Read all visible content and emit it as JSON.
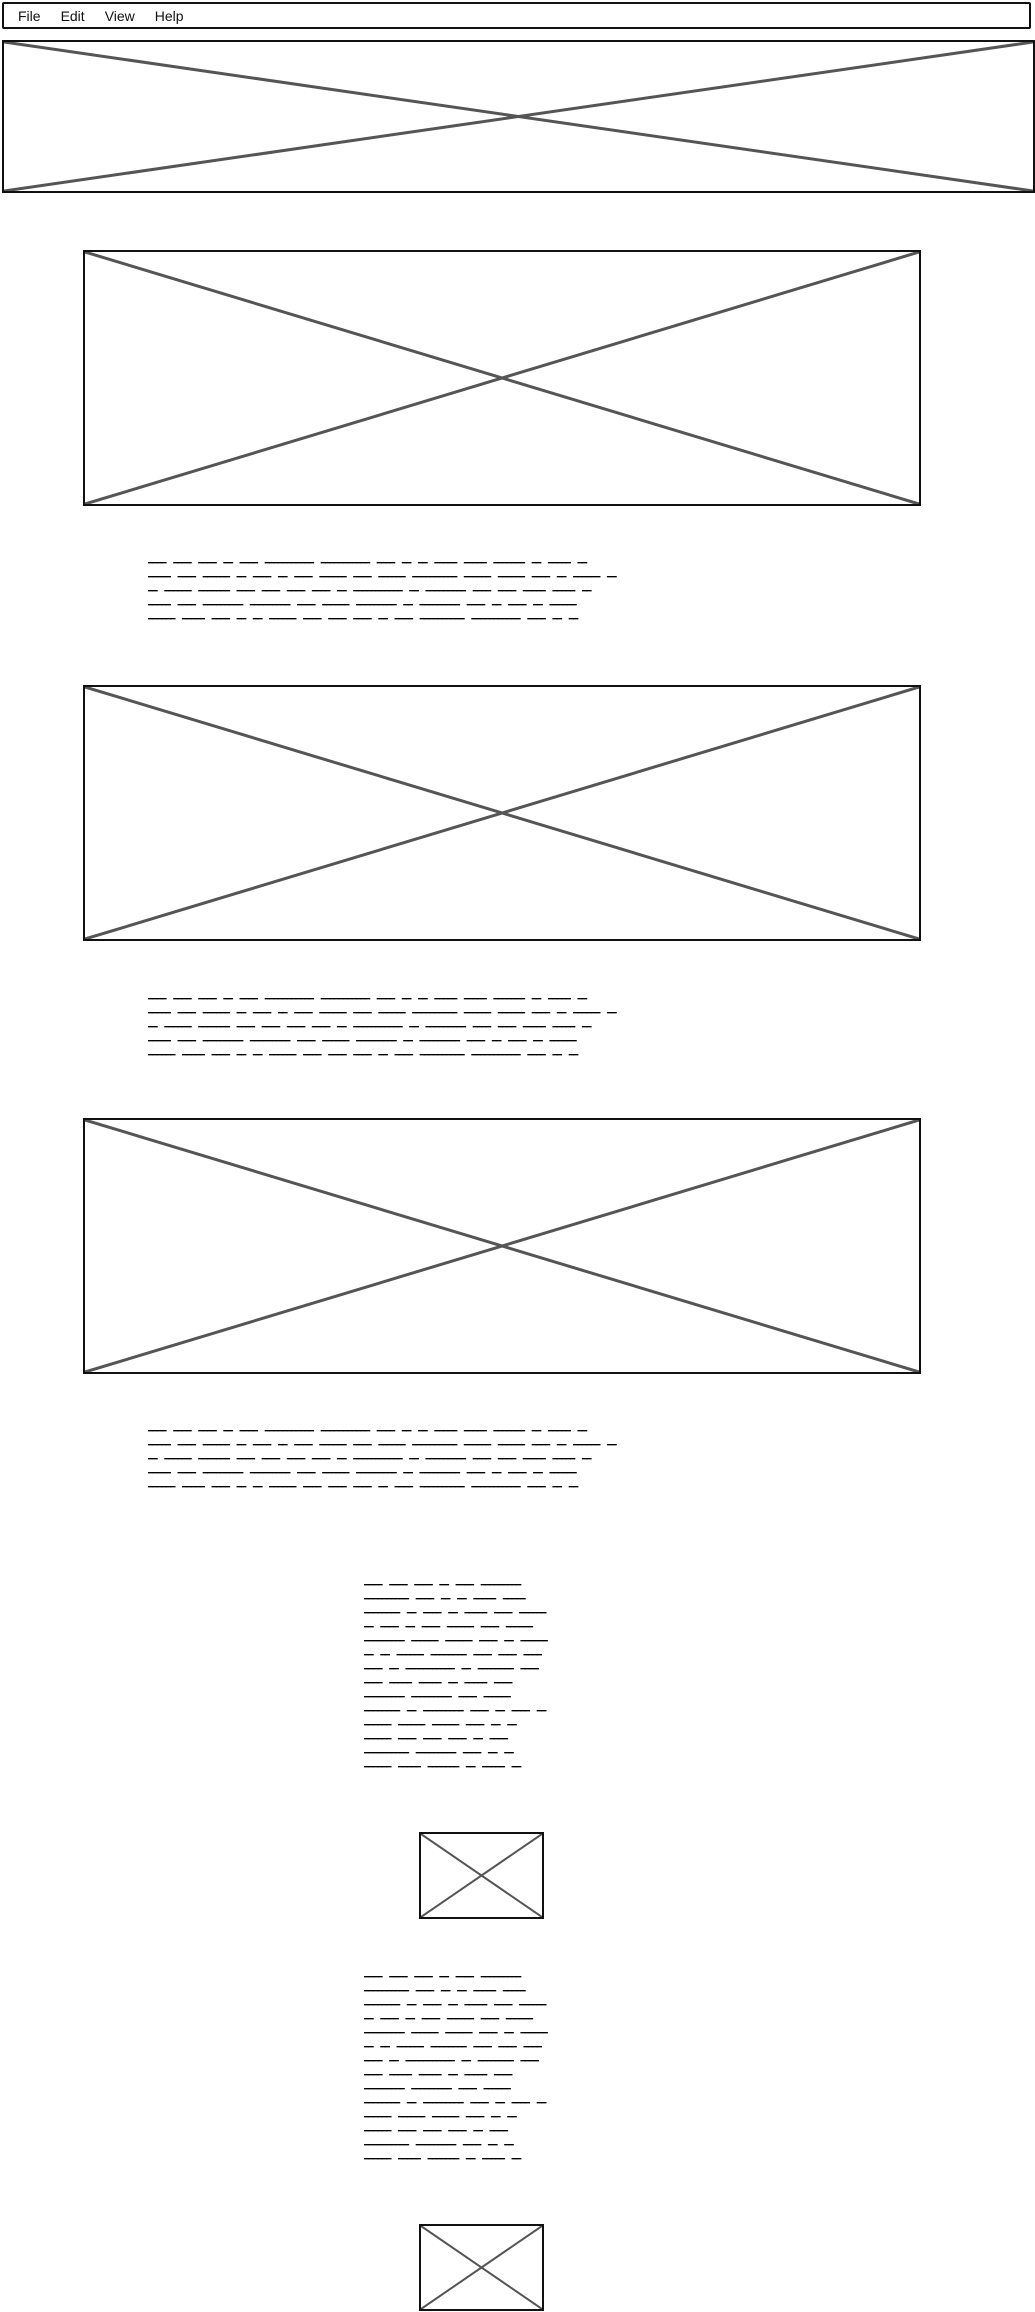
{
  "menubar": {
    "items": [
      "File",
      "Edit",
      "View",
      "Help"
    ]
  },
  "images": [
    {
      "name": "hero-image",
      "alt": "image placeholder"
    },
    {
      "name": "content-image-1",
      "alt": "image placeholder"
    },
    {
      "name": "content-image-2",
      "alt": "image placeholder"
    },
    {
      "name": "content-image-3",
      "alt": "image placeholder"
    },
    {
      "name": "small-image-1",
      "alt": "image placeholder"
    },
    {
      "name": "small-image-2",
      "alt": "image placeholder"
    }
  ],
  "colors": {
    "border": "#111111",
    "placeholder_cross": "#555555",
    "background": "#ffffff"
  }
}
